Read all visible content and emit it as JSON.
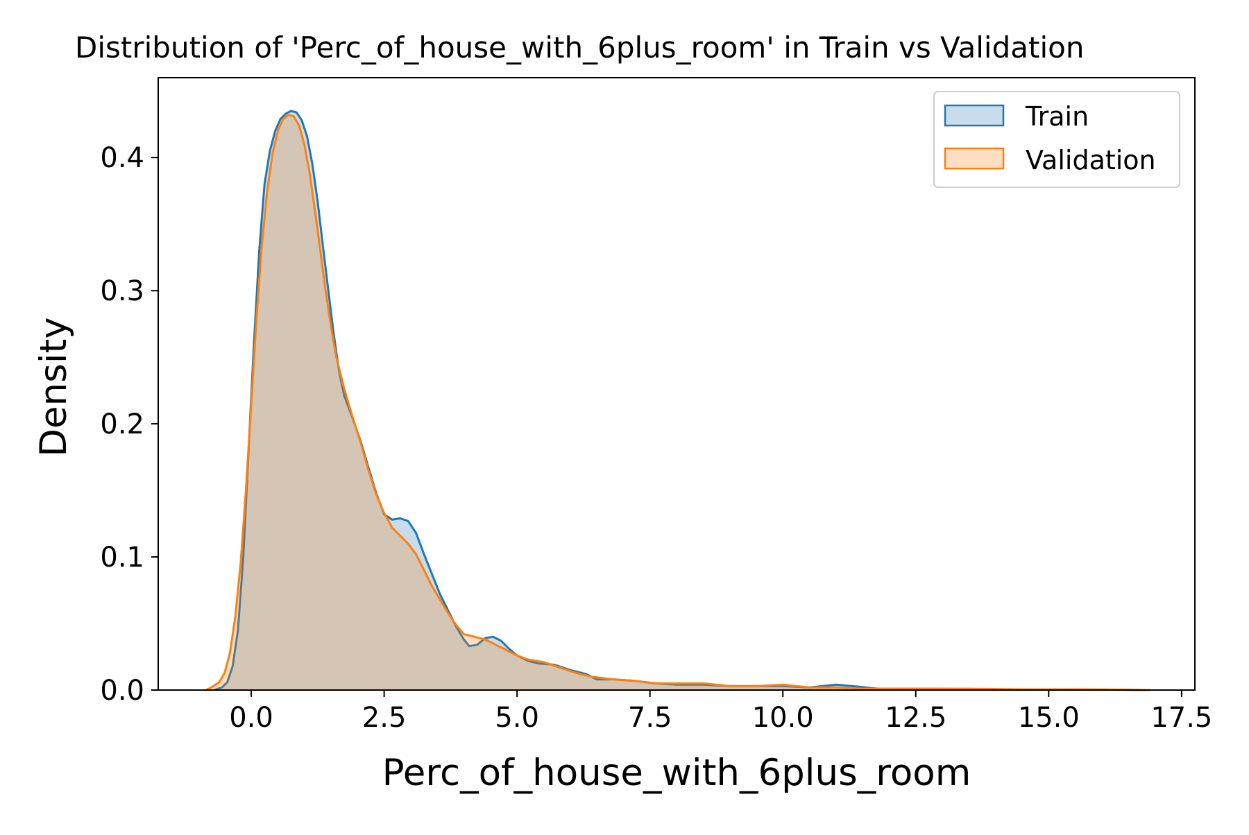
{
  "chart_data": {
    "type": "area",
    "title": "Distribution of 'Perc_of_house_with_6plus_room' in Train vs Validation",
    "xlabel": "Perc_of_house_with_6plus_room",
    "ylabel": "Density",
    "xlim": [
      -1.75,
      17.75
    ],
    "ylim": [
      0,
      0.46
    ],
    "x_ticks": [
      0.0,
      2.5,
      5.0,
      7.5,
      10.0,
      12.5,
      15.0,
      17.5
    ],
    "x_tick_labels": [
      "0.0",
      "2.5",
      "5.0",
      "7.5",
      "10.0",
      "12.5",
      "15.0",
      "17.5"
    ],
    "y_ticks": [
      0.0,
      0.1,
      0.2,
      0.3,
      0.4
    ],
    "y_tick_labels": [
      "0.0",
      "0.1",
      "0.2",
      "0.3",
      "0.4"
    ],
    "grid": false,
    "legend_position": "top-right",
    "series": [
      {
        "name": "Train",
        "color": "#1f77b4",
        "fill_opacity": 0.25,
        "points": [
          [
            -0.7,
            0.0
          ],
          [
            -0.55,
            0.002
          ],
          [
            -0.45,
            0.006
          ],
          [
            -0.35,
            0.018
          ],
          [
            -0.25,
            0.045
          ],
          [
            -0.15,
            0.1
          ],
          [
            -0.05,
            0.18
          ],
          [
            0.05,
            0.26
          ],
          [
            0.15,
            0.33
          ],
          [
            0.25,
            0.38
          ],
          [
            0.35,
            0.405
          ],
          [
            0.45,
            0.42
          ],
          [
            0.55,
            0.429
          ],
          [
            0.65,
            0.433
          ],
          [
            0.75,
            0.435
          ],
          [
            0.85,
            0.434
          ],
          [
            0.95,
            0.428
          ],
          [
            1.05,
            0.416
          ],
          [
            1.15,
            0.395
          ],
          [
            1.25,
            0.367
          ],
          [
            1.35,
            0.333
          ],
          [
            1.45,
            0.3
          ],
          [
            1.55,
            0.268
          ],
          [
            1.65,
            0.24
          ],
          [
            1.75,
            0.221
          ],
          [
            1.9,
            0.205
          ],
          [
            2.05,
            0.188
          ],
          [
            2.2,
            0.168
          ],
          [
            2.35,
            0.148
          ],
          [
            2.5,
            0.132
          ],
          [
            2.65,
            0.128
          ],
          [
            2.8,
            0.129
          ],
          [
            2.95,
            0.127
          ],
          [
            3.1,
            0.118
          ],
          [
            3.25,
            0.102
          ],
          [
            3.4,
            0.087
          ],
          [
            3.55,
            0.072
          ],
          [
            3.7,
            0.06
          ],
          [
            3.85,
            0.048
          ],
          [
            4.0,
            0.038
          ],
          [
            4.1,
            0.033
          ],
          [
            4.25,
            0.034
          ],
          [
            4.4,
            0.039
          ],
          [
            4.55,
            0.04
          ],
          [
            4.7,
            0.037
          ],
          [
            4.85,
            0.031
          ],
          [
            5.0,
            0.026
          ],
          [
            5.2,
            0.022
          ],
          [
            5.4,
            0.02
          ],
          [
            5.7,
            0.019
          ],
          [
            6.0,
            0.015
          ],
          [
            6.3,
            0.012
          ],
          [
            6.5,
            0.008
          ],
          [
            6.8,
            0.008
          ],
          [
            7.2,
            0.007
          ],
          [
            7.6,
            0.005
          ],
          [
            8.0,
            0.004
          ],
          [
            8.5,
            0.004
          ],
          [
            9.0,
            0.003
          ],
          [
            9.5,
            0.003
          ],
          [
            10.0,
            0.003
          ],
          [
            10.5,
            0.002
          ],
          [
            11.0,
            0.004
          ],
          [
            11.3,
            0.003
          ],
          [
            11.8,
            0.001
          ],
          [
            12.5,
            0.001
          ],
          [
            13.0,
            0.001
          ],
          [
            14.0,
            0.0005
          ],
          [
            15.0,
            0.0005
          ],
          [
            16.0,
            0.0003
          ],
          [
            16.9,
            0.0
          ]
        ]
      },
      {
        "name": "Validation",
        "color": "#ff7f0e",
        "fill_opacity": 0.25,
        "points": [
          [
            -0.85,
            0.0
          ],
          [
            -0.75,
            0.002
          ],
          [
            -0.6,
            0.006
          ],
          [
            -0.5,
            0.013
          ],
          [
            -0.4,
            0.028
          ],
          [
            -0.3,
            0.055
          ],
          [
            -0.2,
            0.095
          ],
          [
            -0.1,
            0.15
          ],
          [
            0.0,
            0.215
          ],
          [
            0.1,
            0.28
          ],
          [
            0.2,
            0.335
          ],
          [
            0.3,
            0.375
          ],
          [
            0.4,
            0.403
          ],
          [
            0.5,
            0.42
          ],
          [
            0.6,
            0.429
          ],
          [
            0.7,
            0.432
          ],
          [
            0.8,
            0.431
          ],
          [
            0.9,
            0.424
          ],
          [
            1.0,
            0.41
          ],
          [
            1.1,
            0.388
          ],
          [
            1.2,
            0.36
          ],
          [
            1.3,
            0.33
          ],
          [
            1.4,
            0.3
          ],
          [
            1.5,
            0.273
          ],
          [
            1.6,
            0.25
          ],
          [
            1.75,
            0.226
          ],
          [
            1.9,
            0.206
          ],
          [
            2.05,
            0.187
          ],
          [
            2.2,
            0.166
          ],
          [
            2.35,
            0.147
          ],
          [
            2.5,
            0.133
          ],
          [
            2.65,
            0.122
          ],
          [
            2.8,
            0.116
          ],
          [
            2.95,
            0.11
          ],
          [
            3.1,
            0.102
          ],
          [
            3.25,
            0.09
          ],
          [
            3.4,
            0.078
          ],
          [
            3.55,
            0.068
          ],
          [
            3.7,
            0.058
          ],
          [
            3.85,
            0.049
          ],
          [
            4.0,
            0.042
          ],
          [
            4.2,
            0.04
          ],
          [
            4.4,
            0.038
          ],
          [
            4.6,
            0.034
          ],
          [
            4.8,
            0.03
          ],
          [
            5.0,
            0.026
          ],
          [
            5.2,
            0.023
          ],
          [
            5.5,
            0.021
          ],
          [
            5.8,
            0.017
          ],
          [
            6.1,
            0.013
          ],
          [
            6.4,
            0.01
          ],
          [
            6.8,
            0.008
          ],
          [
            7.2,
            0.007
          ],
          [
            7.6,
            0.005
          ],
          [
            8.0,
            0.005
          ],
          [
            8.5,
            0.005
          ],
          [
            9.0,
            0.003
          ],
          [
            9.5,
            0.003
          ],
          [
            10.0,
            0.004
          ],
          [
            10.5,
            0.002
          ],
          [
            11.0,
            0.002
          ],
          [
            11.5,
            0.001
          ],
          [
            12.5,
            0.001
          ],
          [
            13.5,
            0.001
          ],
          [
            14.5,
            0.0005
          ],
          [
            15.5,
            0.0005
          ],
          [
            16.5,
            0.0003
          ],
          [
            16.9,
            0.0
          ]
        ]
      }
    ]
  }
}
